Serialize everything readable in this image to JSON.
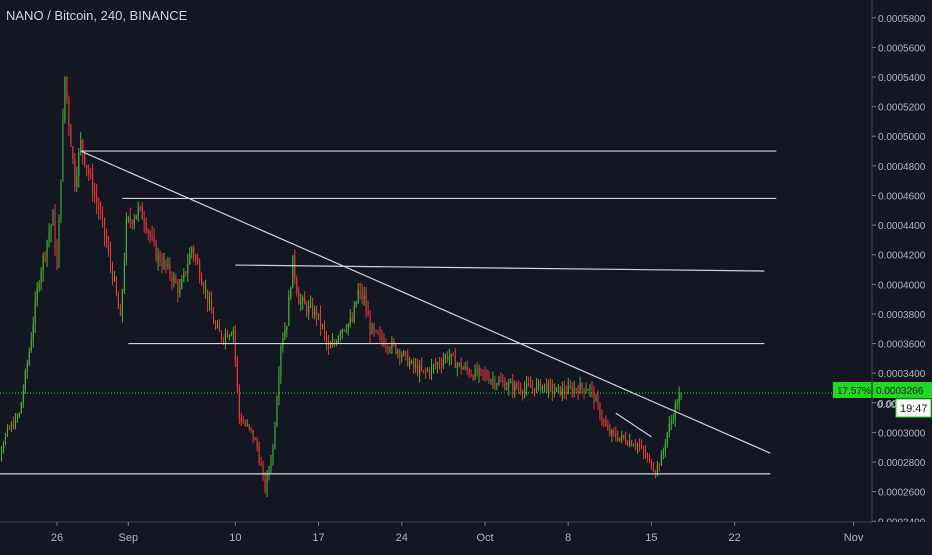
{
  "header": {
    "symbol_title": "NANO / Bitcoin, 240, BINANCE"
  },
  "price_axis": {
    "badge_change": "17.57%",
    "badge_price": "0.0003266",
    "countdown": "19:47",
    "partial_label": "0.00"
  },
  "colors": {
    "background": "#131722",
    "up": "#4caf3a",
    "down": "#e53935",
    "line": "#d1d4dc",
    "price_line": "#2fe02f",
    "badge": "#22d622"
  },
  "chart_data": {
    "type": "candlestick",
    "title": "NANO / Bitcoin, 240, BINANCE",
    "ylim": [
      0.0002395,
      0.000592
    ],
    "y_ticks": [
      "0.0002400",
      "0.0002600",
      "0.0002800",
      "0.0003000",
      "0.0003200",
      "0.0003400",
      "0.0003600",
      "0.0003800",
      "0.0004000",
      "0.0004200",
      "0.0004400",
      "0.0004600",
      "0.0004800",
      "0.0005000",
      "0.0005200",
      "0.0005400",
      "0.0005600",
      "0.0005800"
    ],
    "x_ticks": [
      {
        "label": "26",
        "date": "2018-08-26"
      },
      {
        "label": "Sep",
        "date": "2018-09-01"
      },
      {
        "label": "10",
        "date": "2018-09-10"
      },
      {
        "label": "17",
        "date": "2018-09-17"
      },
      {
        "label": "24",
        "date": "2018-09-24"
      },
      {
        "label": "Oct",
        "date": "2018-10-01"
      },
      {
        "label": "8",
        "date": "2018-10-08"
      },
      {
        "label": "15",
        "date": "2018-10-15"
      },
      {
        "label": "22",
        "date": "2018-10-22"
      },
      {
        "label": "Nov",
        "date": "2018-11-01"
      }
    ],
    "price_path": [
      [
        "2018-08-20T00:00",
        0.000285
      ],
      [
        "2018-08-21T00:00",
        0.000282
      ],
      [
        "2018-08-22T00:00",
        0.0003
      ],
      [
        "2018-08-23T00:00",
        0.000312
      ],
      [
        "2018-08-23T20:00",
        0.000355
      ],
      [
        "2018-08-24T16:00",
        0.000405
      ],
      [
        "2018-08-25T08:00",
        0.00043
      ],
      [
        "2018-08-25T20:00",
        0.000445
      ],
      [
        "2018-08-26T04:00",
        0.00041
      ],
      [
        "2018-08-26T12:00",
        0.000475
      ],
      [
        "2018-08-26T20:00",
        0.00054
      ],
      [
        "2018-08-27T04:00",
        0.00051
      ],
      [
        "2018-08-27T16:00",
        0.00047
      ],
      [
        "2018-08-28T04:00",
        0.000495
      ],
      [
        "2018-08-29T00:00",
        0.00047
      ],
      [
        "2018-08-30T00:00",
        0.00044
      ],
      [
        "2018-08-31T00:00",
        0.0004
      ],
      [
        "2018-08-31T12:00",
        0.000375
      ],
      [
        "2018-09-01T00:00",
        0.00044
      ],
      [
        "2018-09-02T00:00",
        0.00045
      ],
      [
        "2018-09-02T12:00",
        0.000445
      ],
      [
        "2018-09-03T12:00",
        0.00042
      ],
      [
        "2018-09-04T12:00",
        0.00041
      ],
      [
        "2018-09-05T12:00",
        0.000395
      ],
      [
        "2018-09-06T12:00",
        0.000425
      ],
      [
        "2018-09-07T12:00",
        0.0004
      ],
      [
        "2018-09-08T12:00",
        0.00037
      ],
      [
        "2018-09-09T00:00",
        0.000365
      ],
      [
        "2018-09-10T00:00",
        0.00037
      ],
      [
        "2018-09-10T12:00",
        0.00031
      ],
      [
        "2018-09-11T12:00",
        0.0003
      ],
      [
        "2018-09-12T00:00",
        0.00029
      ],
      [
        "2018-09-12T16:00",
        0.000262
      ],
      [
        "2018-09-13T08:00",
        0.00029
      ],
      [
        "2018-09-14T00:00",
        0.00036
      ],
      [
        "2018-09-14T12:00",
        0.000375
      ],
      [
        "2018-09-15T00:00",
        0.000415
      ],
      [
        "2018-09-15T12:00",
        0.00039
      ],
      [
        "2018-09-16T00:00",
        0.000385
      ],
      [
        "2018-09-17T00:00",
        0.00038
      ],
      [
        "2018-09-17T12:00",
        0.00037
      ],
      [
        "2018-09-18T00:00",
        0.000355
      ],
      [
        "2018-09-18T12:00",
        0.00036
      ],
      [
        "2018-09-19T00:00",
        0.00037
      ],
      [
        "2018-09-20T00:00",
        0.000375
      ],
      [
        "2018-09-20T12:00",
        0.000395
      ],
      [
        "2018-09-21T00:00",
        0.00039
      ],
      [
        "2018-09-21T12:00",
        0.00037
      ],
      [
        "2018-09-22T00:00",
        0.000365
      ],
      [
        "2018-09-23T00:00",
        0.00036
      ],
      [
        "2018-09-24T00:00",
        0.000355
      ],
      [
        "2018-09-25T00:00",
        0.000345
      ],
      [
        "2018-09-26T00:00",
        0.00034
      ],
      [
        "2018-09-27T00:00",
        0.000345
      ],
      [
        "2018-09-28T00:00",
        0.000352
      ],
      [
        "2018-09-29T00:00",
        0.000345
      ],
      [
        "2018-09-30T00:00",
        0.00034
      ],
      [
        "2018-10-01T00:00",
        0.000339
      ],
      [
        "2018-10-02T00:00",
        0.000335
      ],
      [
        "2018-10-03T00:00",
        0.000332
      ],
      [
        "2018-10-04T00:00",
        0.00033
      ],
      [
        "2018-10-05T00:00",
        0.00033
      ],
      [
        "2018-10-06T00:00",
        0.000332
      ],
      [
        "2018-10-07T00:00",
        0.000328
      ],
      [
        "2018-10-08T00:00",
        0.000328
      ],
      [
        "2018-10-09T00:00",
        0.00033
      ],
      [
        "2018-10-10T00:00",
        0.00033
      ],
      [
        "2018-10-11T00:00",
        0.00031
      ],
      [
        "2018-10-11T12:00",
        0.0003
      ],
      [
        "2018-10-12T00:00",
        0.000298
      ],
      [
        "2018-10-13T00:00",
        0.000295
      ],
      [
        "2018-10-14T00:00",
        0.000292
      ],
      [
        "2018-10-15T00:00",
        0.00028
      ],
      [
        "2018-10-15T12:00",
        0.000275
      ],
      [
        "2018-10-16T00:00",
        0.000282
      ],
      [
        "2018-10-16T12:00",
        0.0003
      ],
      [
        "2018-10-17T00:00",
        0.000312
      ],
      [
        "2018-10-17T12:00",
        0.0003266
      ]
    ],
    "trendlines": [
      {
        "type": "horizontal",
        "date1": "2018-08-28T00:00",
        "price1": 0.00049,
        "date2": "2018-10-25T12:00",
        "price2": 0.00049
      },
      {
        "type": "horizontal",
        "date1": "2018-08-31T12:00",
        "price1": 0.000458,
        "date2": "2018-10-25T12:00",
        "price2": 0.000458
      },
      {
        "type": "horizontal",
        "date1": "2018-09-10T00:00",
        "price1": 0.000413,
        "date2": "2018-10-24T12:00",
        "price2": 0.000409
      },
      {
        "type": "horizontal",
        "date1": "2018-09-01T00:00",
        "price1": 0.00036,
        "date2": "2018-10-24T12:00",
        "price2": 0.00036
      },
      {
        "type": "horizontal",
        "date1": "2018-08-20T00:00",
        "price1": 0.000272,
        "date2": "2018-10-25T00:00",
        "price2": 0.000272
      },
      {
        "type": "trend",
        "date1": "2018-08-28T00:00",
        "price1": 0.00049,
        "date2": "2018-10-25T00:00",
        "price2": 0.000286
      },
      {
        "type": "trend",
        "date1": "2018-10-12T00:00",
        "price1": 0.000313,
        "date2": "2018-10-15T00:00",
        "price2": 0.000297
      }
    ],
    "current_price": 0.0003266,
    "change_percent": "17.57%"
  }
}
